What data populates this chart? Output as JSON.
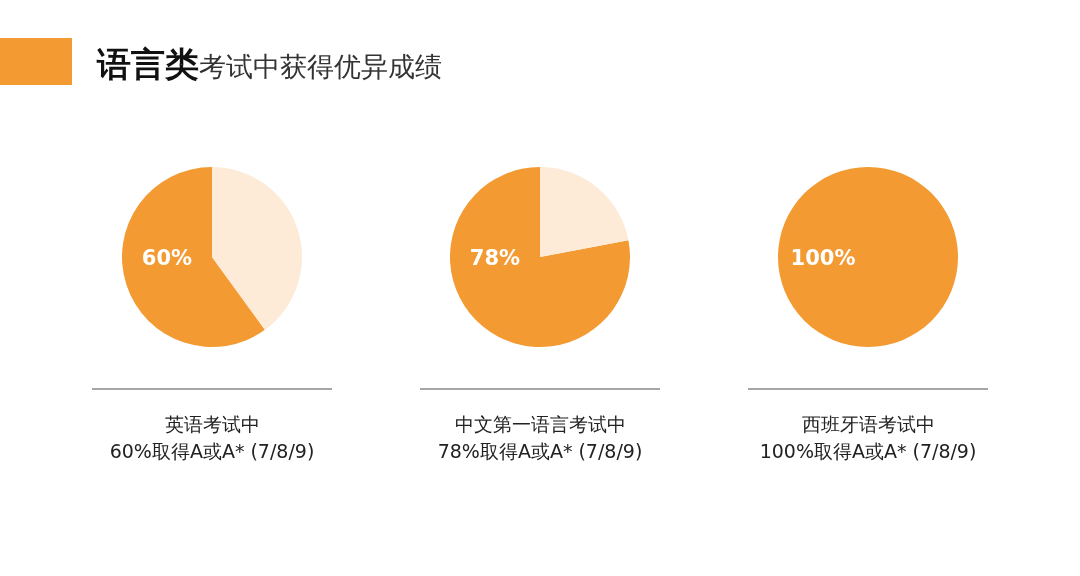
{
  "chart_data": [
    {
      "type": "pie",
      "title": "语言类",
      "subtitle": "考试中获得优异成绩",
      "categories": [
        null,
        null
      ],
      "values": [
        60,
        40
      ],
      "colors": [
        "#f39a33",
        "#fdebd8"
      ],
      "value_labels": [
        "60%",
        null
      ],
      "annotations": [
        "英语考试中",
        "60%取得A或A* (7/8/9)"
      ]
    },
    {
      "type": "pie",
      "categories": [
        null,
        null
      ],
      "values": [
        78,
        22
      ],
      "colors": [
        "#f39a33",
        "#fdebd8"
      ],
      "value_labels": [
        "78%",
        null
      ],
      "annotations": [
        "中文第一语言考试中",
        "78%取得A或A* (7/8/9)"
      ]
    },
    {
      "type": "pie",
      "categories": [
        null
      ],
      "values": [
        100
      ],
      "colors": [
        "#f39a33"
      ],
      "value_labels": [
        "100%"
      ],
      "annotations": [
        "西班牙语考试中",
        "100%取得A或A* (7/8/9)"
      ]
    }
  ]
}
